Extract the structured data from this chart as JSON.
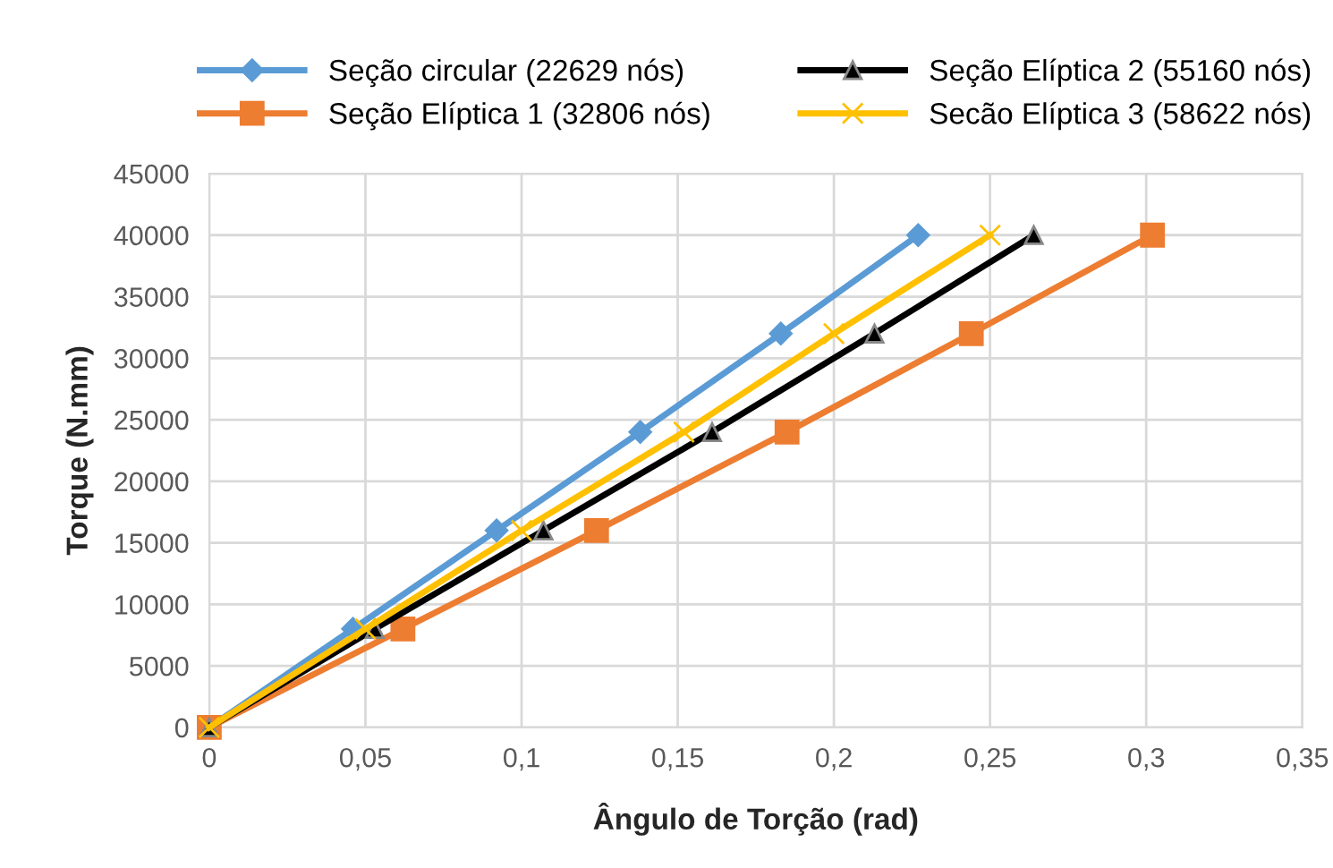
{
  "chart_data": {
    "type": "line",
    "xlabel": "Ângulo de Torção (rad)",
    "ylabel": "Torque (N.mm)",
    "series": [
      {
        "name": "Seção circular (22629 nós)",
        "color": "#5b9bd5",
        "marker": "diamond",
        "x": [
          0,
          0.046,
          0.092,
          0.138,
          0.183,
          0.227
        ],
        "values": [
          0,
          8000,
          16000,
          24000,
          32000,
          40000
        ]
      },
      {
        "name": "Seção Elíptica 1 (32806 nós)",
        "color": "#ed7d31",
        "marker": "square",
        "x": [
          0,
          0.062,
          0.124,
          0.185,
          0.244,
          0.302
        ],
        "values": [
          0,
          8000,
          16000,
          24000,
          32000,
          40000
        ]
      },
      {
        "name": "Seção Elíptica 2 (55160 nós)",
        "color": "#000000",
        "marker": "triangle",
        "x": [
          0,
          0.053,
          0.107,
          0.161,
          0.213,
          0.264
        ],
        "values": [
          0,
          8000,
          16000,
          24000,
          32000,
          40000
        ]
      },
      {
        "name": "Secão Elíptica 3 (58622 nós)",
        "color": "#ffc000",
        "marker": "cross",
        "x": [
          0,
          0.05,
          0.1,
          0.152,
          0.2,
          0.25
        ],
        "values": [
          0,
          8000,
          16000,
          24000,
          32000,
          40000
        ]
      }
    ],
    "xlim": [
      0,
      0.35
    ],
    "xticks": [
      0,
      {
        "value": 0.05,
        "label": "0,05"
      },
      {
        "value": 0.1,
        "label": "0,1"
      },
      {
        "value": 0.15,
        "label": "0,15"
      },
      {
        "value": 0.2,
        "label": "0,2"
      },
      {
        "value": 0.25,
        "label": "0,25"
      },
      {
        "value": 0.3,
        "label": "0,3"
      },
      {
        "value": 0.35,
        "label": "0,35"
      }
    ],
    "ylim": [
      0,
      45000
    ],
    "yticks": [
      0,
      5000,
      10000,
      15000,
      20000,
      25000,
      30000,
      35000,
      40000,
      45000
    ],
    "grid": true,
    "legend": "top",
    "line_style": "solid"
  }
}
